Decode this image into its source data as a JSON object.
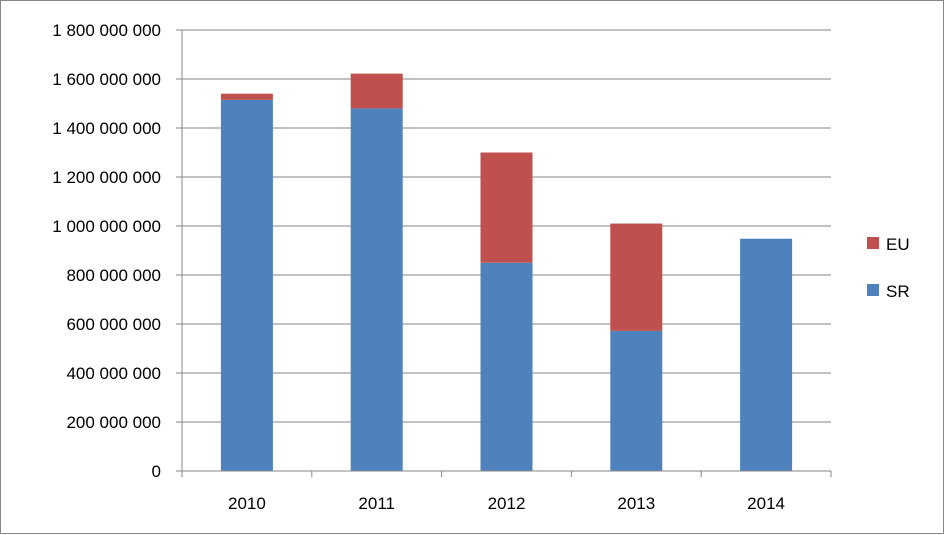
{
  "chart_data": {
    "type": "bar",
    "stacked": true,
    "categories": [
      "2010",
      "2011",
      "2012",
      "2013",
      "2014"
    ],
    "series": [
      {
        "name": "SR",
        "color": "#4F81BD",
        "values": [
          1515000000,
          1480000000,
          850000000,
          572000000,
          948000000
        ]
      },
      {
        "name": "EU",
        "color": "#C0504D",
        "values": [
          25000000,
          142000000,
          450000000,
          438000000,
          0
        ]
      }
    ],
    "yticks": [
      "0",
      "200 000 000",
      "400 000 000",
      "600 000 000",
      "800 000 000",
      "1 000 000 000",
      "1 200 000 000",
      "1 400 000 000",
      "1 600 000 000",
      "1 800 000 000"
    ],
    "ylim": [
      0,
      1800000000
    ],
    "ystep": 200000000,
    "grid": true,
    "legend": {
      "position": "right",
      "order": [
        "EU",
        "SR"
      ]
    },
    "title": "",
    "xlabel": "",
    "ylabel": ""
  }
}
